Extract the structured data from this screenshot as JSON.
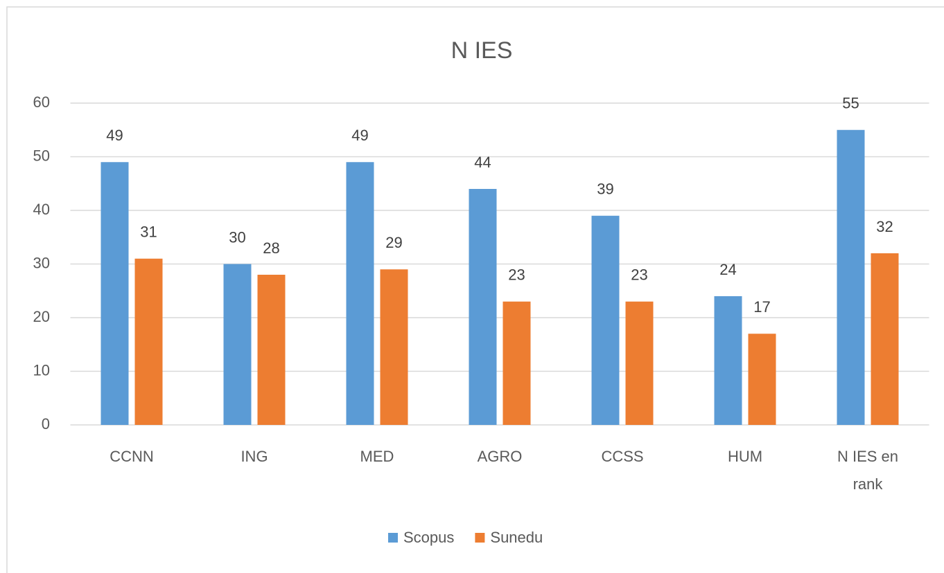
{
  "chart_data": {
    "type": "bar",
    "title": "N IES",
    "categories": [
      "CCNN",
      "ING",
      "MED",
      "AGRO",
      "CCSS",
      "HUM",
      "N IES en rank"
    ],
    "series": [
      {
        "name": "Scopus",
        "color": "#5b9bd5",
        "values": [
          49,
          30,
          49,
          44,
          39,
          24,
          55
        ]
      },
      {
        "name": "Sunedu",
        "color": "#ed7d31",
        "values": [
          31,
          28,
          29,
          23,
          23,
          17,
          32
        ]
      }
    ],
    "ylim": [
      0,
      60
    ],
    "yticks": [
      0,
      10,
      20,
      30,
      40,
      50,
      60
    ],
    "grid": true,
    "legend": "bottom"
  }
}
